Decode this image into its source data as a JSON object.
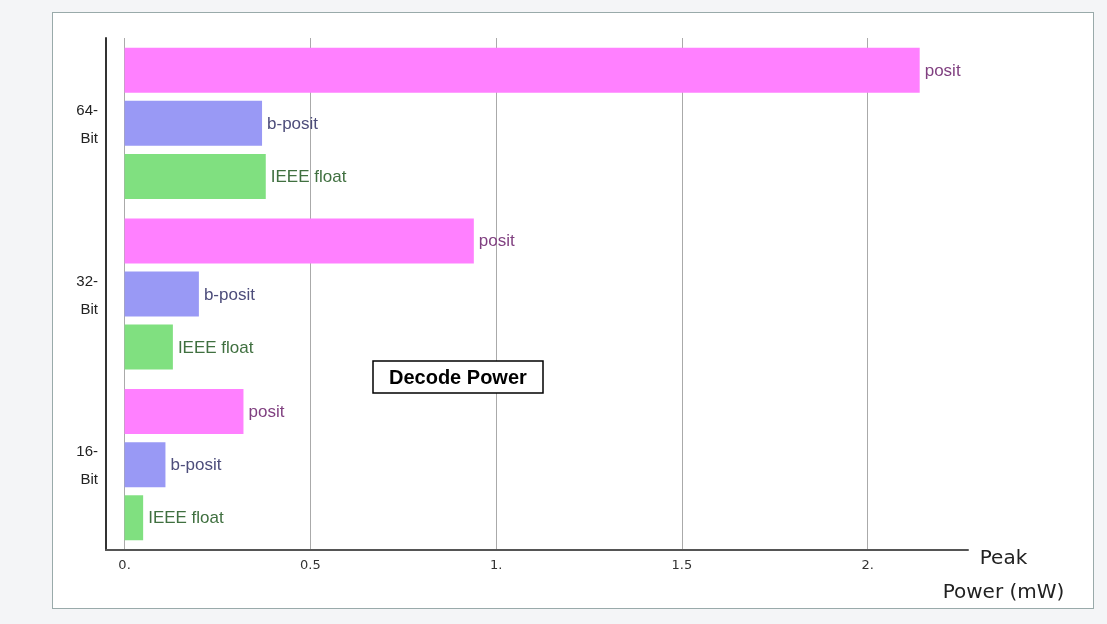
{
  "chart_data": {
    "type": "bar",
    "orientation": "horizontal",
    "title": "Decode Power",
    "xlabel": "Peak Power (mW)",
    "categories": [
      "64-Bit",
      "32-Bit",
      "16-Bit"
    ],
    "series": [
      {
        "name": "posit",
        "color": "#ff80ff",
        "values": [
          2.14,
          0.94,
          0.32
        ]
      },
      {
        "name": "b-posit",
        "color": "#9999f5",
        "values": [
          0.37,
          0.2,
          0.11
        ]
      },
      {
        "name": "IEEE float",
        "color": "#80e080",
        "values": [
          0.38,
          0.13,
          0.05
        ]
      }
    ],
    "xlim": [
      -0.05,
      2.27
    ],
    "xticks": [
      {
        "value": 0,
        "label": "0."
      },
      0.5,
      {
        "value": 1,
        "label": "1."
      },
      1.5,
      {
        "value": 2,
        "label": "2."
      }
    ],
    "grid": "x",
    "legend": false
  }
}
